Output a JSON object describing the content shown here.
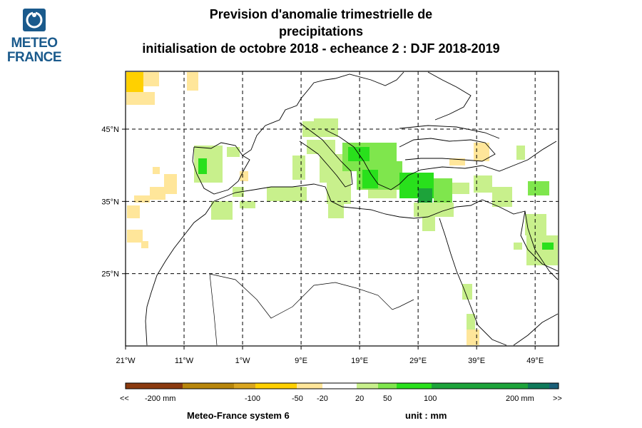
{
  "logo": {
    "line1": "METEO",
    "line2": "FRANCE"
  },
  "title": {
    "line1": "Prevision d'anomalie trimestrielle de",
    "line2": "precipitations",
    "line3": "initialisation de octobre 2018  -  echeance 2 : DJF 2018-2019"
  },
  "map": {
    "lon_range": [
      -21,
      53
    ],
    "lat_range": [
      15,
      53
    ],
    "lon_ticks": [
      "21°W",
      "11°W",
      "1°W",
      "9°E",
      "19°E",
      "29°E",
      "39°E",
      "49°E"
    ],
    "lat_ticks": [
      "45°N",
      "35°N",
      "25°N"
    ],
    "grid_lons": [
      -11,
      -1,
      9,
      19,
      29,
      39,
      49
    ],
    "grid_lats": [
      45,
      35,
      25
    ]
  },
  "legend": {
    "colors": [
      "#8b3a0f",
      "#b8860b",
      "#d9a520",
      "#ffd000",
      "#ffe69a",
      "#ffffff",
      "#c8f08c",
      "#7fe64d",
      "#29e01c",
      "#1da33a",
      "#0f7a5a",
      "#1a5f78"
    ],
    "labels": [
      "<<",
      "-200 mm",
      "-100",
      "-50",
      "-20",
      "20",
      "50",
      "100",
      "200 mm",
      ">>"
    ]
  },
  "footer": {
    "system": "Meteo-France system 6",
    "unit": "unit :  mm"
  }
}
